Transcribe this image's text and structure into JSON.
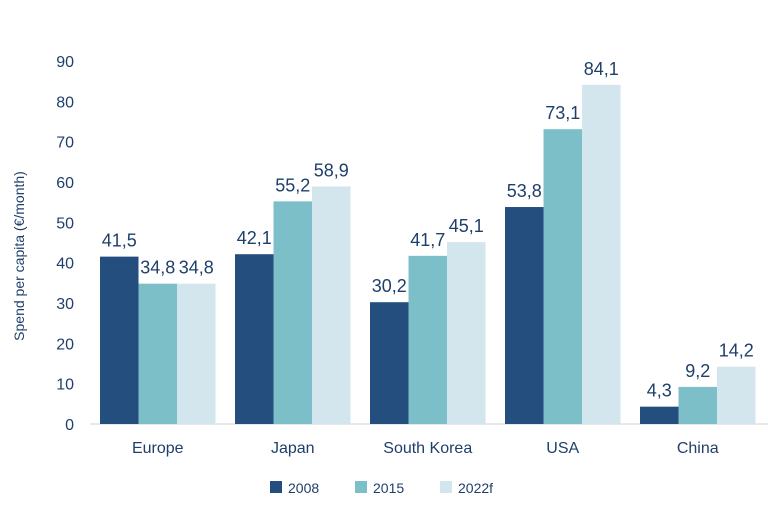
{
  "chart_data": {
    "type": "bar",
    "title": "",
    "xlabel": "",
    "ylabel": "Spend per capita (€/month)",
    "ylim": [
      0,
      90
    ],
    "yticks": [
      0,
      10,
      20,
      30,
      40,
      50,
      60,
      70,
      80,
      90
    ],
    "categories": [
      "Europe",
      "Japan",
      "South Korea",
      "USA",
      "China"
    ],
    "series": [
      {
        "name": "2008",
        "color": "#234e7e",
        "values": [
          41.5,
          42.1,
          30.2,
          53.8,
          4.3
        ],
        "labels": [
          "41,5",
          "42,1",
          "30,2",
          "53,8",
          "4,3"
        ]
      },
      {
        "name": "2015",
        "color": "#7dbfc9",
        "values": [
          34.8,
          55.2,
          41.7,
          73.1,
          9.2
        ],
        "labels": [
          "34,8",
          "55,2",
          "41,7",
          "73,1",
          "9,2"
        ]
      },
      {
        "name": "2022f",
        "color": "#d3e6ee",
        "values": [
          34.8,
          58.9,
          45.1,
          84.1,
          14.2
        ],
        "labels": [
          "34,8",
          "58,9",
          "45,1",
          "84,1",
          "14,2"
        ]
      }
    ],
    "grid": false,
    "legend": "bottom-center"
  }
}
